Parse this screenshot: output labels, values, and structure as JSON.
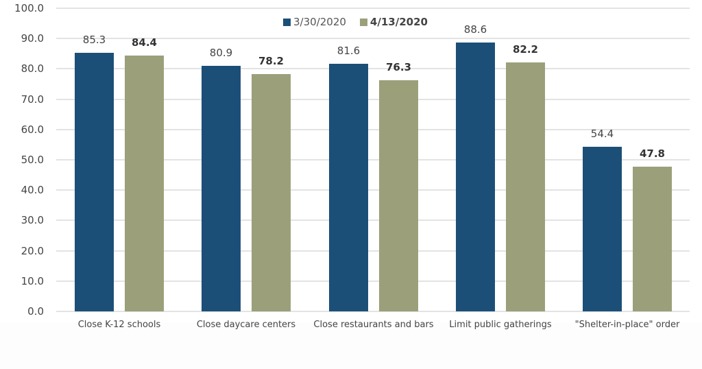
{
  "chart_data": {
    "type": "bar",
    "title": "",
    "xlabel": "",
    "ylabel": "",
    "ylim": [
      0,
      100
    ],
    "yticks": [
      "0.0",
      "10.0",
      "20.0",
      "30.0",
      "40.0",
      "50.0",
      "60.0",
      "70.0",
      "80.0",
      "90.0",
      "100.0"
    ],
    "grid": true,
    "legend_position": "top-center",
    "categories": [
      "Close K-12 schools",
      "Close daycare centers",
      "Close restaurants and bars",
      "Limit public gatherings",
      "\"Shelter-in-place\" order"
    ],
    "series": [
      {
        "name": "3/30/2020",
        "color": "#1c4f78",
        "values": [
          85.3,
          80.9,
          81.6,
          88.6,
          54.4
        ],
        "labels": [
          "85.3",
          "80.9",
          "81.6",
          "88.6",
          "54.4"
        ]
      },
      {
        "name": "4/13/2020",
        "color": "#9ba07a",
        "values": [
          84.4,
          78.2,
          76.3,
          82.2,
          47.8
        ],
        "labels": [
          "84.4",
          "78.2",
          "76.3",
          "82.2",
          "47.8"
        ]
      }
    ]
  }
}
